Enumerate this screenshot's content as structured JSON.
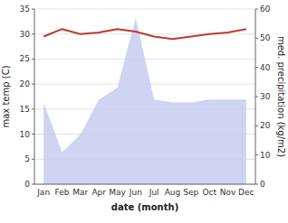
{
  "chart_data": {
    "type": "line",
    "xlabel": "date (month)",
    "ylabel": "max temp (C)",
    "y2label": "med. precipitation (kg/m2)",
    "categories": [
      "Jan",
      "Feb",
      "Mar",
      "Apr",
      "May",
      "Jun",
      "Jul",
      "Aug",
      "Sep",
      "Oct",
      "Nov",
      "Dec"
    ],
    "series": [
      {
        "type": "area",
        "axis": "y2",
        "color": "#c5cdf0",
        "values": [
          28,
          11,
          17,
          29,
          33,
          57,
          29,
          28,
          28,
          29,
          29,
          29
        ]
      },
      {
        "type": "line",
        "color": "#c0392b",
        "values": [
          29.5,
          31.0,
          30.0,
          30.3,
          31.0,
          30.5,
          29.5,
          29.0,
          29.5,
          30.0,
          30.3,
          31.0
        ]
      }
    ],
    "ylim": [
      0,
      35
    ],
    "yticks": [
      0,
      5,
      10,
      15,
      20,
      25,
      30,
      35
    ],
    "y2lim": [
      0,
      60
    ],
    "y2ticks": [
      0,
      10,
      20,
      30,
      40,
      50,
      60
    ],
    "grid": true
  }
}
